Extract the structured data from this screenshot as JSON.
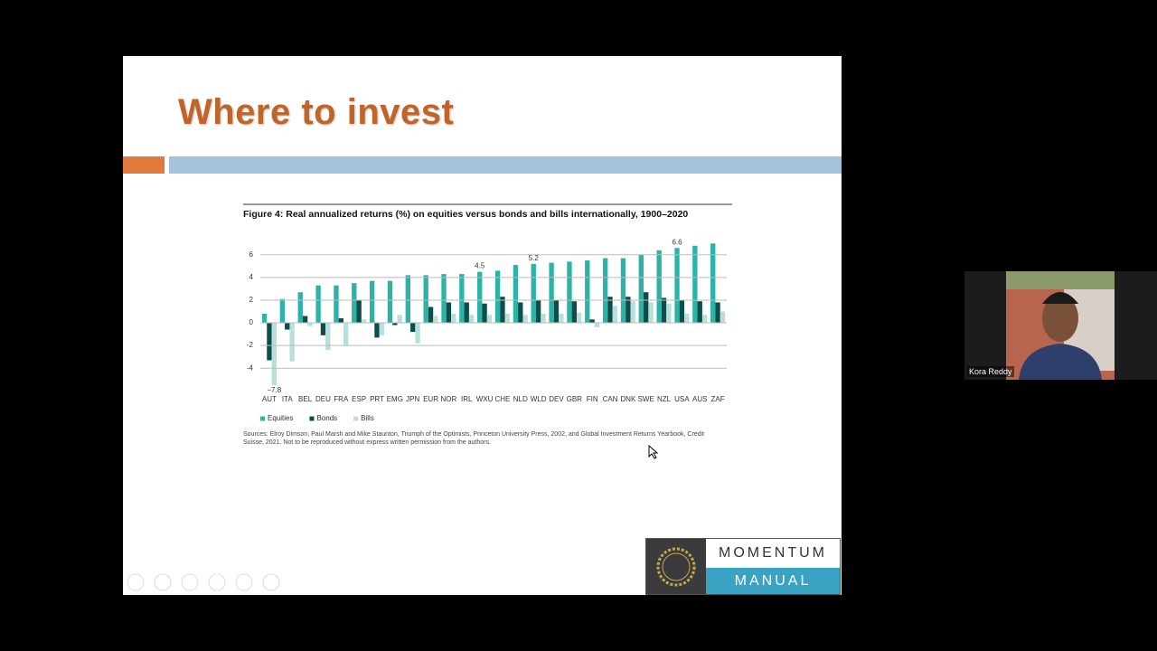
{
  "slide": {
    "title": "Where to invest"
  },
  "chart_data": {
    "type": "bar",
    "title": "Figure 4: Real annualized returns (%) on equities versus bonds and bills internationally, 1900–2020",
    "categories": [
      "AUT",
      "ITA",
      "BEL",
      "DEU",
      "FRA",
      "ESP",
      "PRT",
      "EMG",
      "JPN",
      "EUR",
      "NOR",
      "IRL",
      "WXU",
      "CHE",
      "NLD",
      "WLD",
      "DEV",
      "GBR",
      "FIN",
      "CAN",
      "DNK",
      "SWE",
      "NZL",
      "USA",
      "AUS",
      "ZAF"
    ],
    "series": [
      {
        "name": "Equities",
        "color": "#2ab3a6",
        "values": [
          0.8,
          2.1,
          2.7,
          3.3,
          3.3,
          3.5,
          3.7,
          3.7,
          4.2,
          4.2,
          4.3,
          4.3,
          4.5,
          4.6,
          5.1,
          5.2,
          5.3,
          5.4,
          5.5,
          5.7,
          5.7,
          6.0,
          6.4,
          6.6,
          6.8,
          7.0
        ],
        "value_labels": [
          null,
          null,
          null,
          null,
          null,
          null,
          null,
          null,
          null,
          null,
          null,
          null,
          "4.5",
          null,
          null,
          "5.2",
          null,
          null,
          null,
          null,
          null,
          null,
          null,
          "6.6",
          null,
          null
        ]
      },
      {
        "name": "Bonds",
        "color": "#0f4c4c",
        "values": [
          -3.3,
          -0.6,
          0.6,
          -1.1,
          0.4,
          2.0,
          -1.3,
          -0.2,
          -0.8,
          1.4,
          1.8,
          1.8,
          1.7,
          2.3,
          1.8,
          2.0,
          2.0,
          1.9,
          0.3,
          2.3,
          2.3,
          2.7,
          2.2,
          2.0,
          1.9,
          1.8
        ]
      },
      {
        "name": "Bills",
        "color": "#b8e0da",
        "values": [
          -7.8,
          -3.4,
          -0.3,
          -2.4,
          -2.0,
          0.3,
          -1.1,
          0.7,
          -1.8,
          0.6,
          0.8,
          0.7,
          0.7,
          0.8,
          0.7,
          0.8,
          0.8,
          0.9,
          -0.4,
          1.5,
          1.9,
          1.8,
          1.7,
          0.8,
          0.7,
          1.0
        ],
        "value_labels": [
          "−7.8",
          null,
          null,
          null,
          null,
          null,
          null,
          null,
          null,
          null,
          null,
          null,
          null,
          null,
          null,
          null,
          null,
          null,
          null,
          null,
          null,
          null,
          null,
          null,
          null,
          null
        ]
      }
    ],
    "ylim": [
      -5.5,
      7.5
    ],
    "yticks": [
      -4,
      -2,
      0,
      2,
      4,
      6
    ],
    "grid": true,
    "legend": "bottom-left",
    "source": "Sources: Elroy Dimson, Paul Marsh and Mike Staunton, Triumph of the Optimists, Princeton University Press, 2002, and Global Investment Returns Yearbook, Credit Suisse, 2021. Not to be reproduced without express written permission from the authors."
  },
  "logo": {
    "top": "MOMENTUM",
    "bottom": "MANUAL"
  },
  "participant": {
    "name": "Kora Reddy"
  }
}
